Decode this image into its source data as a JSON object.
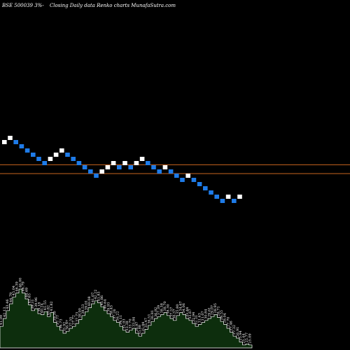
{
  "header": {
    "ticker": "BSE 500039 3%-",
    "text": "Closing Daily data  Renko  charts MunafaSutra.com"
  },
  "colors": {
    "background": "#000000",
    "up_brick": "#ffffff",
    "down_brick": "#1e7be8",
    "ref_line": "#c8641e",
    "volume_fill": "#0d2e0d",
    "volume_stroke": "#ffffff"
  },
  "chart_data": {
    "type": "renko",
    "axis": "unlabeled",
    "brick_direction": [
      "up",
      "up",
      "down",
      "down",
      "down",
      "down",
      "down",
      "down",
      "up",
      "up",
      "up",
      "down",
      "down",
      "down",
      "down",
      "down",
      "down",
      "up",
      "up",
      "up",
      "down",
      "up",
      "down",
      "up",
      "up",
      "down",
      "down",
      "down",
      "up",
      "down",
      "down",
      "down",
      "up",
      "down",
      "down",
      "down",
      "down",
      "down",
      "down",
      "up",
      "down",
      "up"
    ],
    "brick_level": [
      0,
      1,
      0,
      -1,
      -2,
      -3,
      -4,
      -5,
      -4,
      -3,
      -2,
      -3,
      -4,
      -5,
      -6,
      -7,
      -8,
      -7,
      -6,
      -5,
      -6,
      -5,
      -6,
      -5,
      -4,
      -5,
      -6,
      -7,
      -6,
      -7,
      -8,
      -9,
      -8,
      -9,
      -10,
      -11,
      -12,
      -13,
      -14,
      -13,
      -14,
      -13
    ],
    "reference_levels": [
      -5.4,
      -7.5
    ],
    "volume_labels": [
      "41.09",
      "42.13",
      "43.46",
      "44.79",
      "45.04",
      "46.39",
      "46.00",
      "46.79",
      "44.69",
      "41.65",
      "39.31",
      "39.96",
      "39.18",
      "40.24",
      "41.55",
      "40.82",
      "41.82",
      "39.30",
      "37.77",
      "36.73",
      "35.92",
      "36.97",
      "37.55",
      "37.72",
      "37.73",
      "38.00",
      "38.53",
      "39.01",
      "40.08",
      "41.07",
      "42.22",
      "41.83",
      "41.86",
      "40.64",
      "39.93",
      "38.45",
      "37.26",
      "36.22",
      "34.11",
      "32.93",
      "33.38",
      "33.70",
      "33.84",
      "34.97",
      "35.88",
      "35.94",
      "35.47",
      "36.51",
      "36.81",
      "36.92",
      "37.39",
      "38.38",
      "38.70",
      "38.30",
      "37.57",
      "36.57",
      "35.80",
      "34.67",
      "34.06",
      "33.44",
      "33.67",
      "32.94",
      "32.31",
      "31.63",
      "31.07",
      "30.84",
      "29.61",
      "29.07",
      "28.95",
      "28.71",
      "28.55",
      "28.04",
      "27.70",
      "27.46",
      "27.32",
      "26.91",
      "25.94",
      "25.44",
      "25.77",
      "25.09"
    ],
    "volume_height": [
      0.22,
      0.3,
      0.38,
      0.45,
      0.52,
      0.56,
      0.6,
      0.56,
      0.5,
      0.44,
      0.38,
      0.4,
      0.35,
      0.34,
      0.37,
      0.32,
      0.36,
      0.26,
      0.22,
      0.18,
      0.15,
      0.17,
      0.2,
      0.22,
      0.25,
      0.29,
      0.33,
      0.37,
      0.41,
      0.45,
      0.48,
      0.46,
      0.42,
      0.38,
      0.35,
      0.32,
      0.28,
      0.26,
      0.22,
      0.18,
      0.16,
      0.18,
      0.2,
      0.15,
      0.12,
      0.15,
      0.19,
      0.23,
      0.27,
      0.3,
      0.32,
      0.34,
      0.36,
      0.33,
      0.3,
      0.28,
      0.33,
      0.36,
      0.34,
      0.3,
      0.28,
      0.25,
      0.22,
      0.24,
      0.26,
      0.28,
      0.3,
      0.32,
      0.34,
      0.31,
      0.27,
      0.24,
      0.2,
      0.16,
      0.12,
      0.1,
      0.06,
      0.03,
      0.04,
      0.03
    ]
  }
}
